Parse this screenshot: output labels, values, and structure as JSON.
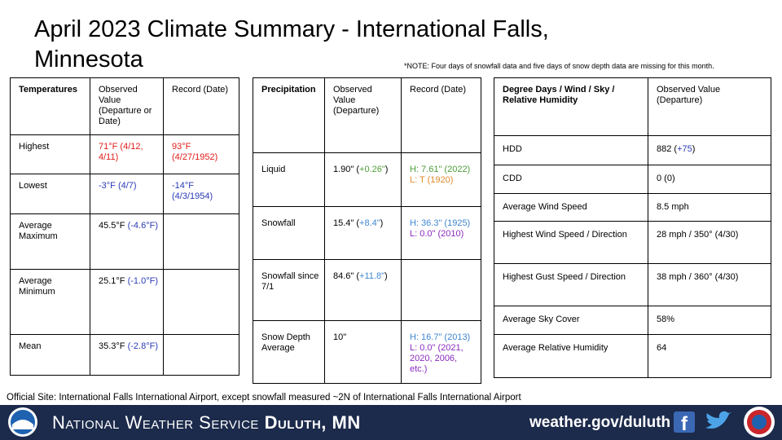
{
  "header": {
    "title": "April 2023 Climate Summary - International Falls, Minnesota",
    "note": "*NOTE:  Four days of snowfall data and five days of snow depth data are missing for this month."
  },
  "tables": [
    {
      "header": [
        "Temperatures",
        "Observed Value (Departure or Date)",
        "Record (Date)"
      ],
      "rows": [
        [
          "Highest",
          {
            "runs": [
              {
                "text": "71°F (4/12, 4/11)",
                "color": "#e0201b"
              }
            ]
          },
          {
            "runs": [
              {
                "text": "93°F (4/27/1952)",
                "color": "#e0201b"
              }
            ]
          }
        ],
        [
          "Lowest",
          {
            "runs": [
              {
                "text": "-3°F (4/7)",
                "color": "#2a3bb5"
              }
            ]
          },
          {
            "runs": [
              {
                "text": "-14°F (4/3/1954)",
                "color": "#2a3bb5"
              }
            ]
          }
        ],
        [
          "Average Maximum",
          {
            "runs": [
              {
                "text": "45.5°F "
              },
              {
                "text": "(-4.6°F)",
                "color": "#2a3bb5"
              }
            ]
          },
          null
        ],
        [
          "Average Minimum",
          {
            "runs": [
              {
                "text": "25.1°F "
              },
              {
                "text": "(-1.0°F)",
                "color": "#2a3bb5"
              }
            ]
          },
          null
        ],
        [
          "Mean",
          {
            "runs": [
              {
                "text": "35.3°F "
              },
              {
                "text": "(-2.8°F)",
                "color": "#2a3bb5"
              }
            ]
          },
          null
        ]
      ]
    },
    {
      "header": [
        "Precipitation",
        "Observed Value (Departure)",
        "Record (Date)"
      ],
      "rows": [
        [
          "Liquid",
          {
            "runs": [
              {
                "text": "1.90\" ("
              },
              {
                "text": "+0.26\"",
                "color": "#4f9e3a"
              },
              {
                "text": ")"
              }
            ]
          },
          {
            "lines": [
              {
                "text": "H: 7.61\" (2022)",
                "color": "#4f9e3a"
              },
              {
                "text": "L: T (1920)",
                "color": "#e08a2a"
              }
            ]
          }
        ],
        [
          "Snowfall",
          {
            "runs": [
              {
                "text": "15.4\" ("
              },
              {
                "text": "+8.4\"",
                "color": "#3f86cf"
              },
              {
                "text": ")"
              }
            ]
          },
          {
            "lines": [
              {
                "text": "H: 36.3\" (1925)",
                "color": "#3f86cf"
              },
              {
                "text": "L: 0.0\" (2010)",
                "color": "#8a2bbf"
              }
            ]
          }
        ],
        [
          "Snowfall since 7/1",
          {
            "runs": [
              {
                "text": "84.6\" ("
              },
              {
                "text": "+11.8\"",
                "color": "#3f86cf"
              },
              {
                "text": ")"
              }
            ]
          },
          null
        ],
        [
          "Snow Depth Average",
          "10\"",
          {
            "lines": [
              {
                "text": "H: 16.7\" (2013)",
                "color": "#3f86cf"
              },
              {
                "text": "L: 0.0\" (2021, 2020, 2006, etc.)",
                "color": "#8a2bbf"
              }
            ]
          }
        ]
      ]
    },
    {
      "header": [
        "Degree Days / Wind / Sky / Relative Humidity",
        "Observed Value (Departure)"
      ],
      "rows": [
        [
          "HDD",
          {
            "runs": [
              {
                "text": "882 ("
              },
              {
                "text": "+75",
                "color": "#2a3bb5"
              },
              {
                "text": ")"
              }
            ]
          }
        ],
        [
          "CDD",
          "0 (0)"
        ],
        [
          "Average Wind Speed",
          "8.5 mph"
        ],
        [
          "Highest Wind Speed / Direction",
          "28 mph / 350° (4/30)"
        ],
        [
          "Highest Gust Speed / Direction",
          "38 mph / 360° (4/30)"
        ],
        [
          "Average Sky Cover",
          "58%"
        ],
        [
          "Average Relative Humidity",
          "64"
        ]
      ]
    }
  ],
  "footer": {
    "site": "Official Site: International  Falls International  Airport,  except snowfall  measured  ~2N of International Falls International  Airport",
    "agency": "National Weather Service",
    "office": "Duluth, MN",
    "url": "weather.gov/duluth"
  }
}
